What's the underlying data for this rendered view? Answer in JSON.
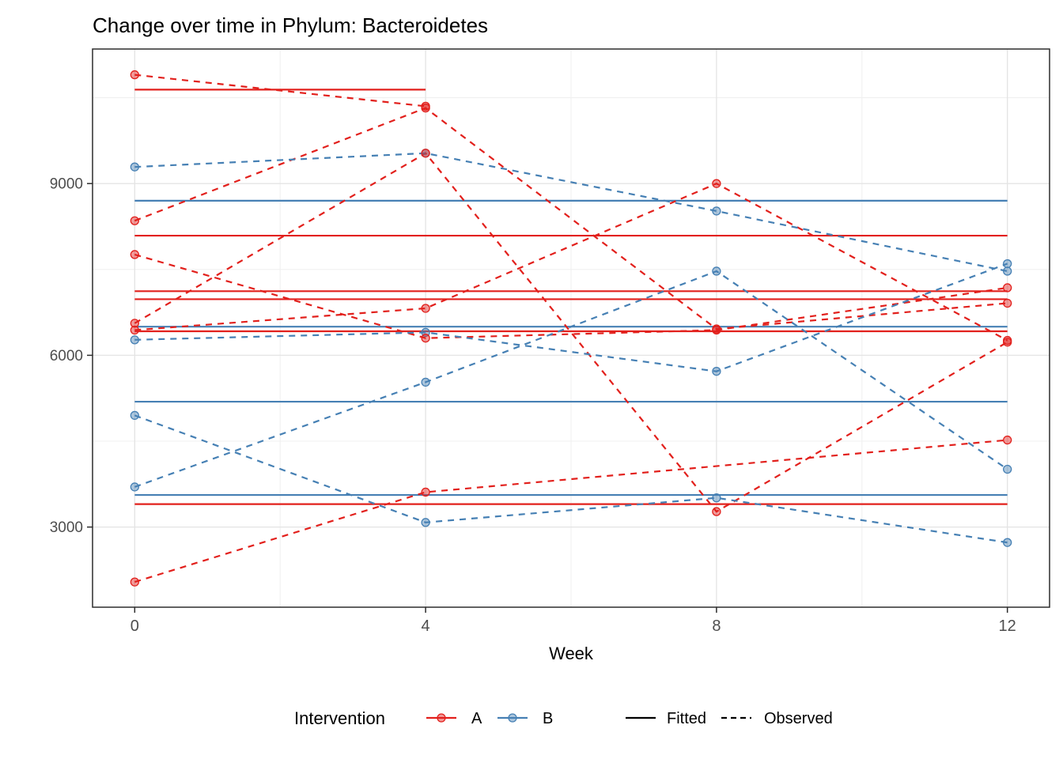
{
  "title": "Change over time in Phylum: Bacteroidetes",
  "colors": {
    "A": "#E2201C",
    "B": "#4680B4",
    "key_black": "#000000"
  },
  "chart_data": {
    "type": "line",
    "title": "Change over time in Phylum: Bacteroidetes",
    "xlabel": "Week",
    "ylabel": "",
    "x_ticks": [
      0,
      4,
      8,
      12
    ],
    "y_ticks": [
      3000,
      6000,
      9000
    ],
    "x_minor_gridlines": [
      2,
      6,
      10
    ],
    "y_minor_gridlines": [
      4500,
      7500,
      10500
    ],
    "xlim": [
      -0.58,
      12.58
    ],
    "ylim": [
      1600,
      11350
    ],
    "grid": true,
    "legend_position": "bottom",
    "legend": {
      "title": "Intervention",
      "color_items": [
        {
          "label": "A"
        },
        {
          "label": "B"
        }
      ],
      "linetype_items": [
        {
          "label": "Fitted"
        },
        {
          "label": "Observed"
        }
      ]
    },
    "series": [
      {
        "subject": "A1",
        "intervention": "A",
        "fitted_value": 10640,
        "fitted_span": [
          0,
          4
        ],
        "observed": [
          [
            0,
            10900
          ],
          [
            4,
            10350
          ]
        ]
      },
      {
        "subject": "A2",
        "intervention": "A",
        "fitted_value": 8090,
        "fitted_span": [
          0,
          12
        ],
        "observed": [
          [
            0,
            8350
          ],
          [
            4,
            10320
          ],
          [
            8,
            6460
          ],
          [
            12,
            6910
          ]
        ]
      },
      {
        "subject": "A3",
        "intervention": "A",
        "fitted_value": 7120,
        "fitted_span": [
          0,
          12
        ],
        "observed": [
          [
            0,
            6440
          ],
          [
            4,
            6820
          ],
          [
            8,
            9000
          ],
          [
            12,
            6260
          ]
        ]
      },
      {
        "subject": "A4",
        "intervention": "A",
        "fitted_value": 6420,
        "fitted_span": [
          0,
          12
        ],
        "observed": [
          [
            0,
            6560
          ],
          [
            4,
            9530
          ],
          [
            8,
            3270
          ],
          [
            12,
            6230
          ]
        ]
      },
      {
        "subject": "A5",
        "intervention": "A",
        "fitted_value": 6980,
        "fitted_span": [
          0,
          12
        ],
        "observed": [
          [
            0,
            7760
          ],
          [
            4,
            6300
          ],
          [
            8,
            6440
          ],
          [
            12,
            7180
          ]
        ]
      },
      {
        "subject": "A6",
        "intervention": "A",
        "fitted_value": 3400,
        "fitted_span": [
          0,
          12
        ],
        "observed": [
          [
            0,
            2040
          ],
          [
            4,
            3610
          ],
          [
            12,
            4520
          ]
        ]
      },
      {
        "subject": "B1",
        "intervention": "B",
        "fitted_value": 8700,
        "fitted_span": [
          0,
          12
        ],
        "observed": [
          [
            0,
            9290
          ],
          [
            4,
            9530
          ],
          [
            8,
            8520
          ],
          [
            12,
            7470
          ]
        ]
      },
      {
        "subject": "B2",
        "intervention": "B",
        "fitted_value": 6500,
        "fitted_span": [
          0,
          12
        ],
        "observed": [
          [
            0,
            6270
          ],
          [
            4,
            6400
          ],
          [
            8,
            5720
          ],
          [
            12,
            7600
          ]
        ]
      },
      {
        "subject": "B3",
        "intervention": "B",
        "fitted_value": 3560,
        "fitted_span": [
          0,
          12
        ],
        "observed": [
          [
            0,
            4950
          ],
          [
            4,
            3080
          ],
          [
            8,
            3510
          ],
          [
            12,
            2730
          ]
        ]
      },
      {
        "subject": "B4",
        "intervention": "B",
        "fitted_value": 5190,
        "fitted_span": [
          0,
          12
        ],
        "observed": [
          [
            0,
            3700
          ],
          [
            4,
            5530
          ],
          [
            8,
            7470
          ],
          [
            12,
            4010
          ]
        ]
      }
    ]
  }
}
